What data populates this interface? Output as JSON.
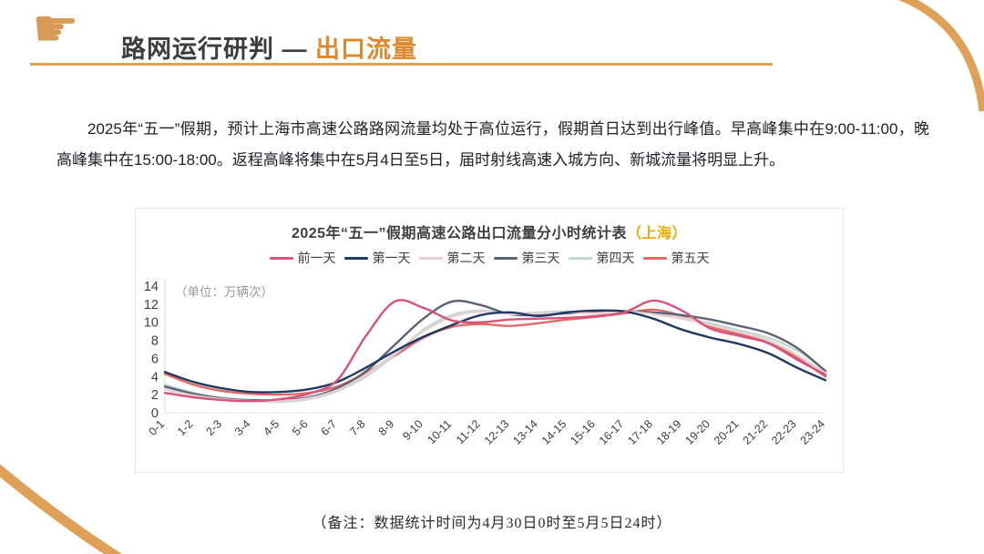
{
  "header": {
    "icon_glyph": "☛",
    "title_main": "路网运行研判 — ",
    "title_accent": "出口流量",
    "accent_color": "#DC8A2F",
    "rule_color": "#D9A455",
    "deco_arc_color": "#DFA057"
  },
  "intro": {
    "text": "2025年“五一”假期，预计上海市高速公路路网流量均处于高位运行，假期首日达到出行峰值。早高峰集中在9:00-11:00，晚高峰集中在15:00-18:00。返程高峰将集中在5月4日至5日，届时射线高速入城方向、新城流量将明显上升。"
  },
  "chart": {
    "title_main": "2025年“五一”假期高速公路出口流量分小时统计表",
    "title_suffix": "（上海）",
    "suffix_color": "#F2A900"
  },
  "chart_data": {
    "type": "line",
    "title": "2025年“五一”假期高速公路出口流量分小时统计表（上海）",
    "unit_label": "（单位：万辆次）",
    "ylabel": "万辆次",
    "ylim": [
      0,
      14
    ],
    "yticks": [
      0,
      2,
      4,
      6,
      8,
      10,
      12,
      14
    ],
    "grid": false,
    "legend_position": "top",
    "categories": [
      "0-1",
      "1-2",
      "2-3",
      "3-4",
      "4-5",
      "5-6",
      "6-7",
      "7-8",
      "8-9",
      "9-10",
      "10-11",
      "11-12",
      "12-13",
      "13-14",
      "14-15",
      "15-16",
      "16-17",
      "17-18",
      "18-19",
      "19-20",
      "20-21",
      "21-22",
      "22-23",
      "23-24"
    ],
    "series": [
      {
        "name": "前一天",
        "color": "#D4547A",
        "values": [
          2.2,
          1.7,
          1.4,
          1.3,
          1.5,
          2.1,
          3.6,
          8.5,
          12.3,
          11.6,
          10.2,
          10.0,
          10.3,
          10.4,
          10.5,
          10.7,
          11.1,
          12.4,
          11.3,
          9.3,
          8.5,
          7.7,
          5.9,
          4.2
        ]
      },
      {
        "name": "第一天",
        "color": "#1F3864",
        "values": [
          4.5,
          3.4,
          2.7,
          2.3,
          2.3,
          2.6,
          3.4,
          5.0,
          6.8,
          8.4,
          9.7,
          10.8,
          11.1,
          10.7,
          11.1,
          11.3,
          11.2,
          10.4,
          9.2,
          8.3,
          7.6,
          6.6,
          5.0,
          3.6
        ]
      },
      {
        "name": "第二天",
        "color": "#E8CFD2",
        "values": [
          2.6,
          1.9,
          1.5,
          1.3,
          1.3,
          1.6,
          2.5,
          4.2,
          6.6,
          9.0,
          10.6,
          11.2,
          10.9,
          11.0,
          11.1,
          11.0,
          11.2,
          10.9,
          10.4,
          9.7,
          8.9,
          8.0,
          6.4,
          4.4
        ]
      },
      {
        "name": "第三天",
        "color": "#5A6374",
        "values": [
          2.9,
          2.1,
          1.6,
          1.4,
          1.4,
          1.7,
          2.7,
          4.6,
          7.5,
          10.4,
          12.3,
          11.9,
          10.9,
          10.8,
          11.0,
          11.1,
          11.2,
          11.1,
          10.8,
          10.3,
          9.6,
          8.8,
          7.2,
          4.6
        ]
      },
      {
        "name": "第四天",
        "color": "#C2D9D3",
        "values": [
          3.1,
          2.2,
          1.6,
          1.3,
          1.2,
          1.5,
          2.4,
          4.0,
          6.4,
          9.2,
          10.8,
          11.3,
          11.0,
          11.1,
          11.2,
          11.1,
          11.3,
          11.0,
          10.5,
          9.9,
          9.1,
          8.3,
          6.9,
          4.7
        ]
      },
      {
        "name": "第五天",
        "color": "#E06A68",
        "values": [
          4.3,
          3.1,
          2.4,
          2.1,
          2.0,
          2.2,
          2.9,
          4.4,
          6.3,
          8.3,
          9.5,
          9.8,
          9.6,
          9.9,
          10.3,
          10.6,
          11.0,
          11.4,
          10.7,
          9.5,
          8.7,
          7.8,
          6.1,
          4.0
        ]
      }
    ]
  },
  "footnote": {
    "text": "（备注：数据统计时间为4月30日0时至5月5日24时）"
  }
}
